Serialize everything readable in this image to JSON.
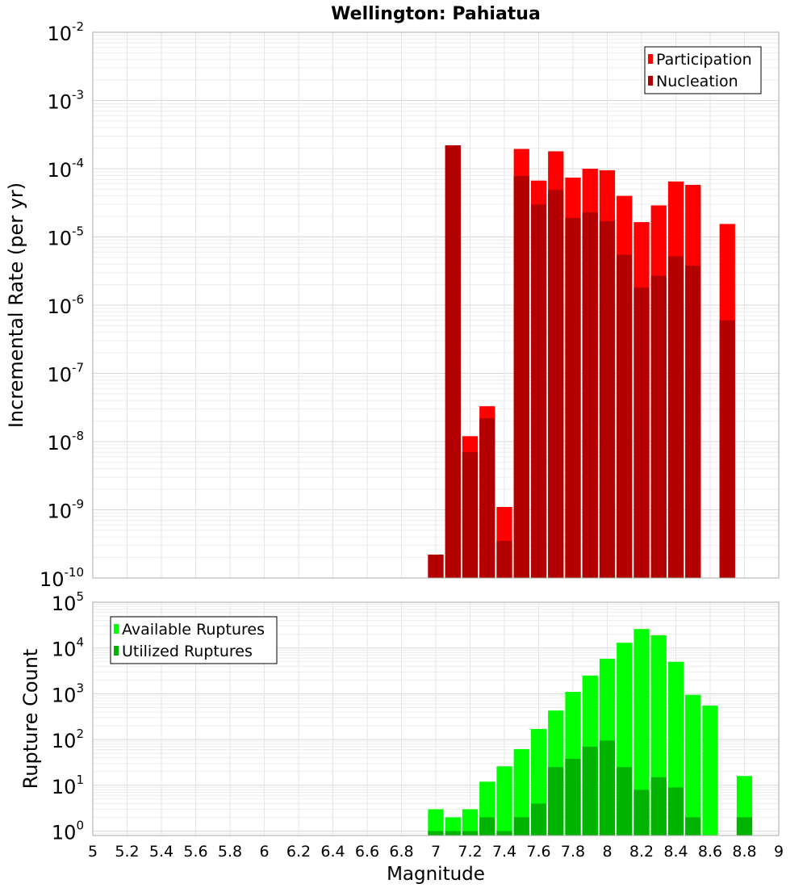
{
  "chart_data": [
    {
      "type": "bar",
      "panel": "top",
      "title": "Wellington: Pahiatua",
      "ylabel": "Incremental Rate (per yr)",
      "xlabel": "",
      "y_scale": "log",
      "ylim": [
        1e-10,
        0.01
      ],
      "xlim": [
        5,
        9
      ],
      "y_ticks": [
        {
          "base": "10",
          "exp": "-10"
        },
        {
          "base": "10",
          "exp": "-9"
        },
        {
          "base": "10",
          "exp": "-8"
        },
        {
          "base": "10",
          "exp": "-7"
        },
        {
          "base": "10",
          "exp": "-6"
        },
        {
          "base": "10",
          "exp": "-5"
        },
        {
          "base": "10",
          "exp": "-4"
        },
        {
          "base": "10",
          "exp": "-3"
        },
        {
          "base": "10",
          "exp": "-2"
        }
      ],
      "grid": true,
      "legend_position": "top-right",
      "x": [
        7.0,
        7.1,
        7.2,
        7.3,
        7.4,
        7.5,
        7.6,
        7.7,
        7.8,
        7.9,
        8.0,
        8.1,
        8.2,
        8.3,
        8.4,
        8.5,
        8.6,
        8.7,
        8.8
      ],
      "series": [
        {
          "name": "Participation",
          "color": "#ff0000",
          "values": [
            2.2e-10,
            0.00022,
            1.2e-08,
            3.3e-08,
            1.1e-09,
            0.000195,
            6.7e-05,
            0.00018,
            7.4e-05,
            0.0001,
            9.5e-05,
            4e-05,
            1.65e-05,
            2.9e-05,
            6.5e-05,
            5.8e-05,
            null,
            1.55e-05,
            null
          ]
        },
        {
          "name": "Nucleation",
          "color": "#b30000",
          "values": [
            2.2e-10,
            0.00022,
            7e-09,
            2.2e-08,
            3.5e-10,
            7.8e-05,
            3e-05,
            4.9e-05,
            1.9e-05,
            2.3e-05,
            1.7e-05,
            5.5e-06,
            1.8e-06,
            2.7e-06,
            5.2e-06,
            3.8e-06,
            null,
            6e-07,
            null
          ]
        }
      ]
    },
    {
      "type": "bar",
      "panel": "bottom",
      "title": "",
      "ylabel": "Rupture Count",
      "xlabel": "Magnitude",
      "y_scale": "log",
      "ylim": [
        0.8,
        100000.0
      ],
      "xlim": [
        5,
        9
      ],
      "x_tick_labels": [
        "5",
        "5.2",
        "5.4",
        "5.6",
        "5.8",
        "6",
        "6.2",
        "6.4",
        "6.6",
        "6.8",
        "7",
        "7.2",
        "7.4",
        "7.6",
        "7.8",
        "8",
        "8.2",
        "8.4",
        "8.6",
        "8.8",
        "9"
      ],
      "y_ticks": [
        {
          "base": "10",
          "exp": "0"
        },
        {
          "base": "10",
          "exp": "1"
        },
        {
          "base": "10",
          "exp": "2"
        },
        {
          "base": "10",
          "exp": "3"
        },
        {
          "base": "10",
          "exp": "4"
        },
        {
          "base": "10",
          "exp": "5"
        }
      ],
      "grid": true,
      "legend_position": "top-left",
      "x": [
        7.0,
        7.1,
        7.2,
        7.3,
        7.4,
        7.5,
        7.6,
        7.7,
        7.8,
        7.9,
        8.0,
        8.1,
        8.2,
        8.3,
        8.4,
        8.5,
        8.6,
        8.7,
        8.8
      ],
      "series": [
        {
          "name": "Available Ruptures",
          "color": "#00ff00",
          "values": [
            3,
            2,
            3,
            12,
            26,
            62,
            170,
            430,
            1100,
            2500,
            5800,
            13000,
            26000,
            19000,
            5000,
            950,
            550,
            null,
            16
          ]
        },
        {
          "name": "Utilized Ruptures",
          "color": "#00b300",
          "values": [
            1,
            1,
            1,
            2,
            1,
            2,
            4,
            25,
            38,
            70,
            95,
            25,
            8,
            15,
            9,
            2,
            null,
            null,
            2
          ]
        }
      ]
    }
  ]
}
